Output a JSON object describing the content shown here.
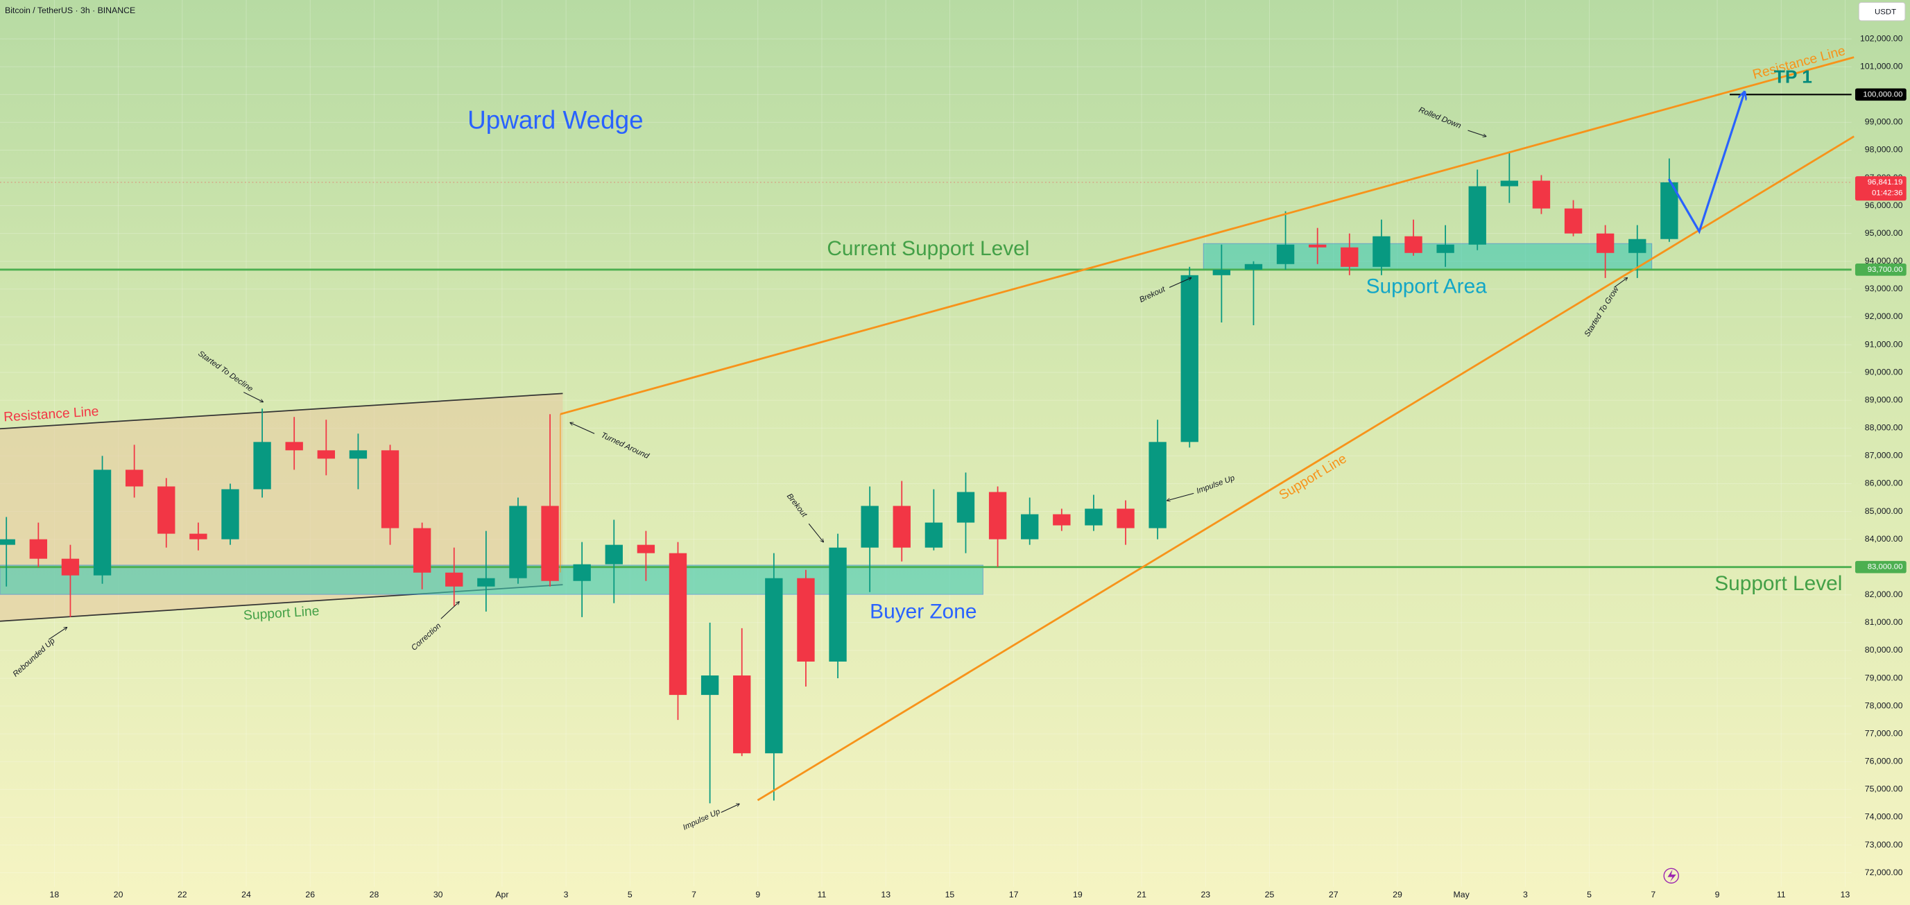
{
  "chart_data": {
    "type": "candlestick",
    "title": "Bitcoin / TetherUS · 3h · BINANCE",
    "currency": "USDT",
    "xlim": [
      16.3,
      74.2
    ],
    "ylim": [
      71500,
      103400
    ],
    "x": [
      16,
      17,
      18,
      19,
      20,
      21,
      22,
      23,
      24,
      25,
      26,
      27,
      28,
      29,
      30,
      31,
      32,
      33,
      34,
      35,
      36,
      37,
      38,
      39,
      40,
      41,
      42,
      43,
      44,
      45,
      46,
      47,
      48,
      49,
      50,
      51,
      52,
      53,
      54,
      55,
      56,
      57,
      58,
      59,
      60,
      61,
      62,
      63,
      64,
      65,
      66,
      67,
      68
    ],
    "open": [
      83800,
      84000,
      83300,
      82700,
      86500,
      85900,
      84200,
      84000,
      85800,
      87500,
      87200,
      86900,
      87200,
      84400,
      82800,
      82300,
      82600,
      85200,
      82500,
      83100,
      83800,
      83500,
      78400,
      79100,
      76300,
      82600,
      79600,
      83700,
      85200,
      83700,
      84600,
      85700,
      84000,
      84900,
      84500,
      85100,
      84400,
      87500,
      93500,
      93700,
      93900,
      94600,
      94500,
      93800,
      94900,
      94300,
      94600,
      96700,
      96900,
      95900,
      95000,
      94300,
      94800
    ],
    "high": [
      84800,
      84600,
      83800,
      87000,
      87400,
      86200,
      84600,
      86000,
      88700,
      88400,
      88300,
      87800,
      87400,
      84600,
      83700,
      84300,
      85500,
      88500,
      83900,
      84700,
      84300,
      83900,
      81000,
      80800,
      83500,
      82900,
      84200,
      85900,
      86100,
      85800,
      86400,
      85900,
      85500,
      85100,
      85600,
      85400,
      88300,
      93800,
      94600,
      94000,
      95800,
      95200,
      95000,
      95500,
      95500,
      95300,
      97300,
      97900,
      97100,
      96200,
      95300,
      95300,
      97700
    ],
    "low": [
      82300,
      83000,
      81200,
      82400,
      85500,
      83700,
      83600,
      83800,
      85500,
      86500,
      86300,
      85800,
      83800,
      82200,
      81600,
      81400,
      82400,
      82300,
      81200,
      81700,
      82500,
      77500,
      74500,
      76200,
      74600,
      78700,
      79000,
      82100,
      83200,
      83600,
      83500,
      83000,
      83800,
      84300,
      84300,
      83800,
      84000,
      87300,
      91800,
      91700,
      93700,
      93900,
      93500,
      93500,
      94200,
      93800,
      94400,
      96100,
      95700,
      94900,
      93400,
      93400,
      94700
    ],
    "close": [
      84000,
      83300,
      82700,
      86500,
      85900,
      84200,
      84000,
      85800,
      87500,
      87200,
      86900,
      87200,
      84400,
      82800,
      82300,
      82600,
      85200,
      82500,
      83100,
      83800,
      83500,
      78400,
      79100,
      76300,
      82600,
      79600,
      83700,
      85200,
      83700,
      84600,
      85700,
      84000,
      84900,
      84500,
      85100,
      84400,
      87500,
      93500,
      93700,
      93900,
      94600,
      94500,
      93800,
      94900,
      94300,
      94600,
      96700,
      96900,
      95900,
      95000,
      94300,
      94800,
      96841.19
    ],
    "up_color": "#089981",
    "down_color": "#f23645",
    "last_price": {
      "value": 96841.19,
      "label": "96,841.19"
    },
    "countdown": "01:42:36",
    "levels": [
      {
        "value": 100000,
        "label": "100,000.00",
        "color": "#000000"
      },
      {
        "value": 93700,
        "label": "93,700.00",
        "color": "#4caf50"
      },
      {
        "value": 83000,
        "label": "83,000.00",
        "color": "#4caf50"
      }
    ],
    "xticks": [
      18,
      20,
      22,
      24,
      26,
      28,
      30,
      {
        "value": 32,
        "label": "Apr"
      },
      {
        "value": 34,
        "label": "3"
      },
      {
        "value": 36,
        "label": "5"
      },
      {
        "value": 38,
        "label": "7"
      },
      {
        "value": 40,
        "label": "9"
      },
      {
        "value": 42,
        "label": "11"
      },
      {
        "value": 44,
        "label": "13"
      },
      {
        "value": 46,
        "label": "15"
      },
      {
        "value": 48,
        "label": "17"
      },
      {
        "value": 50,
        "label": "19"
      },
      {
        "value": 52,
        "label": "21"
      },
      {
        "value": 54,
        "label": "23"
      },
      {
        "value": 56,
        "label": "25"
      },
      {
        "value": 58,
        "label": "27"
      },
      {
        "value": 60,
        "label": "29"
      },
      {
        "value": 62,
        "label": "May"
      },
      {
        "value": 64,
        "label": "3"
      },
      {
        "value": 66,
        "label": "5"
      },
      {
        "value": 68,
        "label": "7"
      },
      {
        "value": 70,
        "label": "9"
      },
      {
        "value": 72,
        "label": "11"
      },
      {
        "value": 74,
        "label": "13"
      }
    ],
    "yticks": [
      {
        "value": 72000,
        "label": "72,000.00"
      },
      {
        "value": 73000,
        "label": "73,000.00"
      },
      {
        "value": 74000,
        "label": "74,000.00"
      },
      {
        "value": 75000,
        "label": "75,000.00"
      },
      {
        "value": 76000,
        "label": "76,000.00"
      },
      {
        "value": 77000,
        "label": "77,000.00"
      },
      {
        "value": 78000,
        "label": "78,000.00"
      },
      {
        "value": 79000,
        "label": "79,000.00"
      },
      {
        "value": 80000,
        "label": "80,000.00"
      },
      {
        "value": 81000,
        "label": "81,000.00"
      },
      {
        "value": 82000,
        "label": "82,000.00"
      },
      {
        "value": 83000,
        "label": "83,000.00"
      },
      {
        "value": 84000,
        "label": "84,000.00"
      },
      {
        "value": 85000,
        "label": "85,000.00"
      },
      {
        "value": 86000,
        "label": "86,000.00"
      },
      {
        "value": 87000,
        "label": "87,000.00"
      },
      {
        "value": 88000,
        "label": "88,000.00"
      },
      {
        "value": 89000,
        "label": "89,000.00"
      },
      {
        "value": 90000,
        "label": "90,000.00"
      },
      {
        "value": 91000,
        "label": "91,000.00"
      },
      {
        "value": 92000,
        "label": "92,000.00"
      },
      {
        "value": 93000,
        "label": "93,000.00"
      },
      {
        "value": 94000,
        "label": "94,000.00"
      },
      {
        "value": 95000,
        "label": "95,000.00"
      },
      {
        "value": 96000,
        "label": "96,000.00"
      },
      {
        "value": 97000,
        "label": "97,000.00"
      },
      {
        "value": 98000,
        "label": "98,000.00"
      },
      {
        "value": 99000,
        "label": "99,000.00"
      },
      {
        "value": 100000,
        "label": "100,000.00"
      },
      {
        "value": 101000,
        "label": "101,000.00"
      },
      {
        "value": 102000,
        "label": "102,000.00"
      }
    ],
    "annotations": [
      "Upward Wedge",
      "Current Support Level",
      "Support Area",
      "Buyer Zone",
      "Support Level",
      "Resistance Line",
      "Support Line",
      "Support Line",
      "Resistance Line",
      "TP 1",
      "Started To Decline",
      "Rebounded Up",
      "Correction",
      "Turned Around",
      "Brekout",
      "Impulse Up",
      "Impulse Up",
      "Brekout",
      "Rolled Down",
      "Started To Grow"
    ]
  }
}
